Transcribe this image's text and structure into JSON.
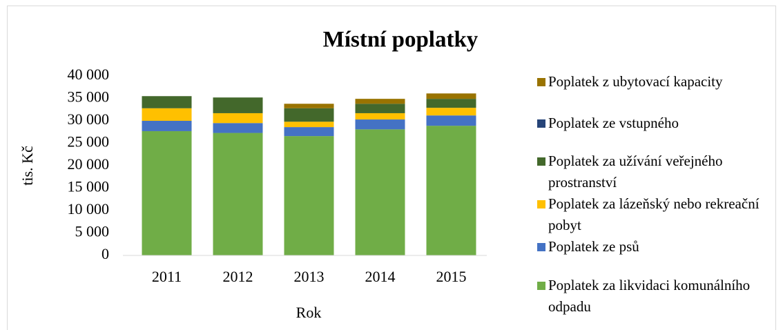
{
  "chart_data": {
    "type": "bar",
    "stacked": true,
    "title": "Místní poplatky",
    "x_label": "Rok",
    "y_label": "tis. Kč",
    "categories": [
      "2011",
      "2012",
      "2013",
      "2014",
      "2015"
    ],
    "series": [
      {
        "name": "Poplatek za likvidaci komunálního odpadu",
        "color": "#70ad47",
        "values": [
          27700,
          27300,
          26600,
          28100,
          28900
        ]
      },
      {
        "name": "Poplatek ze psů",
        "color": "#4472c4",
        "values": [
          2300,
          2200,
          2000,
          2200,
          2300
        ]
      },
      {
        "name": "Poplatek za lázeňský nebo rekreační pobyt",
        "color": "#ffc000",
        "values": [
          2800,
          2200,
          1200,
          1400,
          1700
        ]
      },
      {
        "name": "Poplatek za užívání veřejného prostranství",
        "color": "#43682b",
        "values": [
          2700,
          3500,
          3000,
          2100,
          2000
        ]
      },
      {
        "name": "Poplatek ze vstupného",
        "color": "#264478",
        "values": [
          0,
          0,
          0,
          0,
          0
        ]
      },
      {
        "name": "Poplatek z ubytovací kapacity",
        "color": "#997300",
        "values": [
          0,
          0,
          1000,
          1100,
          1200
        ]
      }
    ],
    "ylim": [
      0,
      40000
    ],
    "yticks": [
      0,
      {
        "value": 5000,
        "label": "5 000"
      },
      {
        "value": 10000,
        "label": "10 000"
      },
      {
        "value": 15000,
        "label": "15 000"
      },
      {
        "value": 20000,
        "label": "20 000"
      },
      {
        "value": 25000,
        "label": "25 000"
      },
      {
        "value": 30000,
        "label": "30 000"
      },
      {
        "value": 35000,
        "label": "35 000"
      },
      {
        "value": 40000,
        "label": "40 000"
      }
    ],
    "grid": false,
    "legend": "right"
  }
}
